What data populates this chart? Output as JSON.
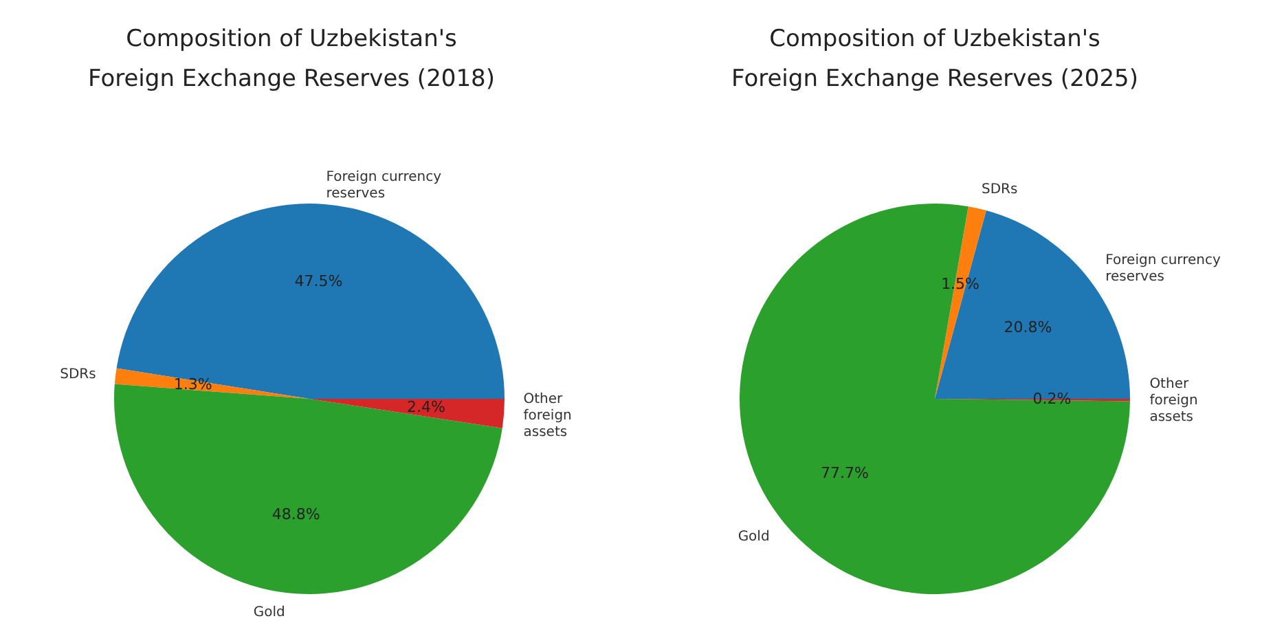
{
  "chart_data": [
    {
      "type": "pie",
      "title": "Composition of Uzbekistan's\nForeign Exchange Reserves (2018)",
      "categories": [
        "Foreign currency\nreserves",
        "SDRs",
        "Gold",
        "Other\nforeign\nassets"
      ],
      "values": [
        47.5,
        1.3,
        48.8,
        2.4
      ],
      "colors": [
        "#1f77b4",
        "#ff7f0e",
        "#2ca02c",
        "#d62728"
      ],
      "value_labels": [
        "47.5%",
        "1.3%",
        "48.8%",
        "2.4%"
      ]
    },
    {
      "type": "pie",
      "title": "Composition of Uzbekistan's\nForeign Exchange Reserves (2025)",
      "categories": [
        "Foreign currency\nreserves",
        "SDRs",
        "Gold",
        "Other\nforeign\nassets"
      ],
      "values": [
        20.8,
        1.5,
        77.7,
        0.2
      ],
      "colors": [
        "#1f77b4",
        "#ff7f0e",
        "#2ca02c",
        "#d62728"
      ],
      "value_labels": [
        "20.8%",
        "1.5%",
        "77.7%",
        "0.2%"
      ]
    }
  ]
}
